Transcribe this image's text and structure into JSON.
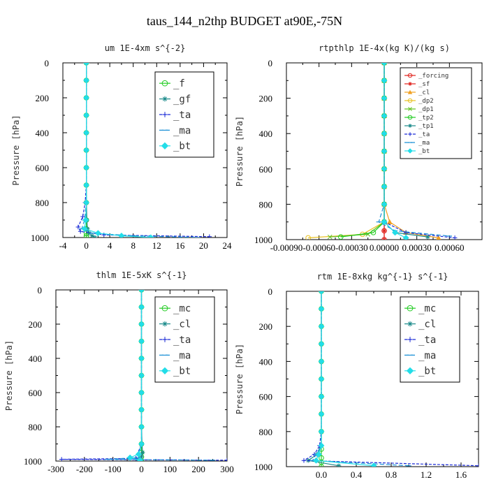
{
  "title": "taus_144_n2thp  BUDGET at90E,-75N",
  "chart_data": [
    {
      "type": "line",
      "title": "um  1E-4xm s^{-2}",
      "ylabel": "Pressure [hPa]",
      "xlim": [
        -4,
        24
      ],
      "ylim": [
        1000,
        0
      ],
      "x_ticks": [
        -4,
        0,
        4,
        8,
        12,
        16,
        20,
        24
      ],
      "x_tick_labels": [
        "-4",
        "0",
        "4",
        "8",
        "12",
        "16",
        "20",
        "24"
      ],
      "y_ticks": [
        0,
        200,
        400,
        600,
        800,
        1000
      ],
      "y_tick_labels": [
        "0",
        "200",
        "400",
        "600",
        "800",
        "1000"
      ],
      "legend_position": "top-right",
      "legend_font": 14,
      "series": [
        {
          "name": "_f",
          "color": "#22cc22",
          "marker": "o",
          "dash": "",
          "x": [
            0,
            0,
            0,
            0,
            0,
            0,
            0,
            0,
            0,
            0,
            0,
            0,
            0,
            0
          ],
          "y": [
            0,
            100,
            200,
            300,
            400,
            500,
            600,
            700,
            800,
            900,
            950,
            975,
            990,
            1000
          ]
        },
        {
          "name": "_gf",
          "color": "#1a8a8a",
          "marker": "*",
          "dash": "",
          "x": [
            0,
            0,
            0,
            0,
            0,
            0,
            0,
            0,
            0,
            0.1,
            0.2,
            0.5,
            1.0,
            1.5
          ],
          "y": [
            0,
            100,
            200,
            300,
            400,
            500,
            600,
            700,
            800,
            900,
            950,
            975,
            990,
            1000
          ]
        },
        {
          "name": "_ta",
          "color": "#1a2ad6",
          "marker": "+",
          "dash": "4,2",
          "x": [
            0,
            0,
            0,
            0,
            0,
            0,
            0,
            0,
            -0.2,
            -0.6,
            -1.4,
            -1.0,
            3.0,
            21.0
          ],
          "y": [
            0,
            100,
            200,
            300,
            400,
            500,
            600,
            700,
            800,
            880,
            940,
            965,
            985,
            995
          ]
        },
        {
          "name": "_ma",
          "color": "#1a90d6",
          "marker": "-",
          "dash": "6,3",
          "x": [
            0,
            0,
            0,
            0,
            0,
            0,
            0,
            0,
            0,
            -0.3,
            -0.8,
            1.0,
            8.0,
            19.0
          ],
          "y": [
            0,
            100,
            200,
            300,
            400,
            500,
            600,
            700,
            800,
            900,
            950,
            975,
            990,
            1000
          ]
        },
        {
          "name": "_bt",
          "color": "#22dde8",
          "marker": "d",
          "dash": "",
          "x": [
            0,
            0,
            0,
            0,
            0,
            0,
            0,
            0,
            0,
            -0.1,
            -0.3,
            2.0,
            6.0,
            11.0
          ],
          "y": [
            0,
            100,
            200,
            300,
            400,
            500,
            600,
            700,
            800,
            900,
            950,
            975,
            990,
            1000
          ]
        }
      ]
    },
    {
      "type": "line",
      "title": "rtpthlp  1E-4x(kg K)/(kg s)",
      "ylabel": "Pressure [hPa]",
      "xlim": [
        -0.0009,
        0.0009
      ],
      "ylim": [
        1000,
        0
      ],
      "x_ticks": [
        -0.0009,
        -0.0006,
        -0.0003,
        0.0,
        0.0003,
        0.0006
      ],
      "x_tick_labels": [
        "-0.00090",
        "-0.00060",
        "-0.00030",
        "0.00000",
        "0.00030",
        "0.00060"
      ],
      "y_ticks": [
        0,
        200,
        400,
        600,
        800,
        1000
      ],
      "y_tick_labels": [
        "0",
        "200",
        "400",
        "600",
        "800",
        "1000"
      ],
      "legend_position": "top-right",
      "legend_font": 9,
      "series": [
        {
          "name": "_forcing",
          "color": "#e0201a",
          "marker": "o",
          "dash": "",
          "x": [
            0,
            0,
            0,
            0,
            0,
            0,
            0,
            0,
            0,
            0,
            0,
            0
          ],
          "y": [
            0,
            100,
            200,
            300,
            400,
            500,
            600,
            700,
            800,
            900,
            950,
            1000
          ]
        },
        {
          "name": "_sf",
          "color": "#e0201a",
          "marker": "*",
          "dash": "",
          "x": [
            0,
            0,
            0,
            0,
            0,
            0,
            0,
            0,
            0,
            0,
            0,
            0
          ],
          "y": [
            0,
            100,
            200,
            300,
            400,
            500,
            600,
            700,
            800,
            900,
            950,
            1000
          ]
        },
        {
          "name": "_cl",
          "color": "#f0a020",
          "marker": "^",
          "dash": "",
          "x": [
            0,
            0,
            0,
            0,
            0,
            0,
            0,
            0,
            0,
            5e-05,
            0.0002,
            0.0005
          ],
          "y": [
            0,
            100,
            200,
            300,
            400,
            500,
            600,
            700,
            800,
            900,
            960,
            990
          ]
        },
        {
          "name": "_dp2",
          "color": "#e8c020",
          "marker": "o",
          "dash": "",
          "x": [
            0,
            0,
            0,
            0,
            0,
            0,
            0,
            0,
            0,
            0,
            -0.0002,
            -0.0007
          ],
          "y": [
            0,
            100,
            200,
            300,
            400,
            500,
            600,
            700,
            800,
            900,
            970,
            990
          ]
        },
        {
          "name": "_dp1",
          "color": "#60c020",
          "marker": "x",
          "dash": "",
          "x": [
            0,
            0,
            0,
            0,
            0,
            0,
            0,
            0,
            0,
            0,
            -0.00015,
            -0.0005
          ],
          "y": [
            0,
            100,
            200,
            300,
            400,
            500,
            600,
            700,
            800,
            900,
            970,
            985
          ]
        },
        {
          "name": "_tp2",
          "color": "#22cc22",
          "marker": "o",
          "dash": "",
          "x": [
            0,
            0,
            0,
            0,
            0,
            0,
            0,
            0,
            0,
            0,
            -0.0001,
            -0.0004
          ],
          "y": [
            0,
            100,
            200,
            300,
            400,
            500,
            600,
            700,
            800,
            900,
            960,
            985
          ]
        },
        {
          "name": "_tp1",
          "color": "#1a8a8a",
          "marker": "*",
          "dash": "",
          "x": [
            0,
            0,
            0,
            0,
            0,
            0,
            0,
            0,
            0,
            0,
            0.0001,
            0.0004
          ],
          "y": [
            0,
            100,
            200,
            300,
            400,
            500,
            600,
            700,
            800,
            900,
            960,
            985
          ]
        },
        {
          "name": "_ta",
          "color": "#1a2ad6",
          "marker": "+",
          "dash": "4,2",
          "x": [
            0,
            0,
            0,
            0,
            0,
            0,
            0,
            0,
            0,
            0,
            0.0002,
            0.00065
          ],
          "y": [
            0,
            100,
            200,
            300,
            400,
            500,
            600,
            700,
            800,
            900,
            960,
            990
          ]
        },
        {
          "name": "_ma",
          "color": "#1a90d6",
          "marker": "-",
          "dash": "6,3",
          "x": [
            0,
            0,
            0,
            0,
            0,
            0,
            0,
            0,
            0,
            -5e-05,
            0.0001,
            0.0006
          ],
          "y": [
            0,
            100,
            200,
            300,
            400,
            500,
            600,
            700,
            800,
            900,
            950,
            980
          ]
        },
        {
          "name": "_bt",
          "color": "#22dde8",
          "marker": "d",
          "dash": "",
          "x": [
            0,
            0,
            0,
            0,
            0,
            0,
            0,
            0,
            0,
            0,
            0.0001,
            0.0002
          ],
          "y": [
            0,
            100,
            200,
            300,
            400,
            500,
            600,
            700,
            800,
            900,
            960,
            990
          ]
        }
      ]
    },
    {
      "type": "line",
      "title": "thlm  1E-5xK s^{-1}",
      "ylabel": "Pressure [hPa]",
      "xlim": [
        -300,
        300
      ],
      "ylim": [
        1000,
        0
      ],
      "x_ticks": [
        -300,
        -200,
        -100,
        0,
        100,
        200,
        300
      ],
      "x_tick_labels": [
        "-300",
        "-200",
        "-100",
        "0",
        "100",
        "200",
        "300"
      ],
      "y_ticks": [
        0,
        200,
        400,
        600,
        800,
        1000
      ],
      "y_tick_labels": [
        "0",
        "200",
        "400",
        "600",
        "800",
        "1000"
      ],
      "legend_position": "top-right",
      "legend_font": 14,
      "series": [
        {
          "name": "_mc",
          "color": "#22cc22",
          "marker": "o",
          "dash": "",
          "x": [
            0,
            0,
            0,
            0,
            0,
            0,
            0,
            0,
            0,
            0,
            0,
            0,
            0
          ],
          "y": [
            0,
            100,
            200,
            300,
            400,
            500,
            600,
            700,
            800,
            900,
            950,
            975,
            1000
          ]
        },
        {
          "name": "_cl",
          "color": "#1a8a8a",
          "marker": "*",
          "dash": "",
          "x": [
            0,
            0,
            0,
            0,
            0,
            0,
            0,
            0,
            0,
            2,
            4,
            0,
            -10
          ],
          "y": [
            0,
            100,
            200,
            300,
            400,
            500,
            600,
            700,
            800,
            900,
            950,
            975,
            995
          ]
        },
        {
          "name": "_ta",
          "color": "#1a2ad6",
          "marker": "+",
          "dash": "4,2",
          "x": [
            0,
            0,
            0,
            0,
            0,
            0,
            0,
            0,
            0,
            0,
            -20,
            -280,
            300
          ],
          "y": [
            0,
            100,
            200,
            300,
            400,
            500,
            600,
            700,
            800,
            900,
            985,
            990,
            995
          ]
        },
        {
          "name": "_ma",
          "color": "#1a90d6",
          "marker": "-",
          "dash": "6,3",
          "x": [
            0,
            0,
            0,
            0,
            0,
            0,
            0,
            0,
            0,
            0,
            -10,
            -120,
            250
          ],
          "y": [
            0,
            100,
            200,
            300,
            400,
            500,
            600,
            700,
            800,
            900,
            980,
            990,
            995
          ]
        },
        {
          "name": "_bt",
          "color": "#22dde8",
          "marker": "d",
          "dash": "",
          "x": [
            0,
            0,
            0,
            0,
            0,
            0,
            0,
            0,
            0,
            0,
            -10,
            -40,
            -5
          ],
          "y": [
            0,
            100,
            200,
            300,
            400,
            500,
            600,
            700,
            800,
            900,
            960,
            980,
            995
          ]
        }
      ]
    },
    {
      "type": "line",
      "title": "rtm  1E-8xkg kg^{-1} s^{-1}",
      "ylabel": "Pressure [hPa]",
      "xlim": [
        -0.4,
        1.8
      ],
      "ylim": [
        1000,
        0
      ],
      "x_ticks": [
        0,
        0.4,
        0.8,
        1.2,
        1.6
      ],
      "x_tick_labels": [
        "0.0",
        "0.4",
        "0.8",
        "1.2",
        "1.6"
      ],
      "y_ticks": [
        0,
        200,
        400,
        600,
        800,
        1000
      ],
      "y_tick_labels": [
        "0",
        "200",
        "400",
        "600",
        "800",
        "1000"
      ],
      "legend_position": "top-right",
      "legend_font": 14,
      "series": [
        {
          "name": "_mc",
          "color": "#22cc22",
          "marker": "o",
          "dash": "",
          "x": [
            0,
            0,
            0,
            0,
            0,
            0,
            0,
            0,
            0,
            0,
            0,
            0,
            0
          ],
          "y": [
            0,
            100,
            200,
            300,
            400,
            500,
            600,
            700,
            800,
            900,
            950,
            975,
            1000
          ]
        },
        {
          "name": "_cl",
          "color": "#1a8a8a",
          "marker": "*",
          "dash": "",
          "x": [
            0,
            0,
            0,
            0,
            0,
            0,
            0,
            0,
            0,
            0,
            -0.05,
            -0.15,
            0.2
          ],
          "y": [
            0,
            100,
            200,
            300,
            400,
            500,
            600,
            700,
            800,
            880,
            930,
            965,
            995
          ]
        },
        {
          "name": "_ta",
          "color": "#1a2ad6",
          "marker": "+",
          "dash": "4,2",
          "x": [
            0,
            0,
            0,
            0,
            0,
            0,
            0,
            0,
            0,
            -0.02,
            -0.08,
            -0.2,
            1.8
          ],
          "y": [
            0,
            100,
            200,
            300,
            400,
            500,
            600,
            700,
            800,
            880,
            930,
            965,
            995
          ]
        },
        {
          "name": "_ma",
          "color": "#1a90d6",
          "marker": "-",
          "dash": "6,3",
          "x": [
            0,
            0,
            0,
            0,
            0,
            0,
            0,
            0,
            0,
            0,
            -0.06,
            -0.1,
            1.0
          ],
          "y": [
            0,
            100,
            200,
            300,
            400,
            500,
            600,
            700,
            800,
            880,
            930,
            965,
            995
          ]
        },
        {
          "name": "_bt",
          "color": "#22dde8",
          "marker": "d",
          "dash": "",
          "x": [
            0,
            0,
            0,
            0,
            0,
            0,
            0,
            0,
            0,
            0,
            -0.03,
            -0.06,
            0.6
          ],
          "y": [
            0,
            100,
            200,
            300,
            400,
            500,
            600,
            700,
            800,
            880,
            930,
            965,
            995
          ]
        }
      ]
    }
  ]
}
